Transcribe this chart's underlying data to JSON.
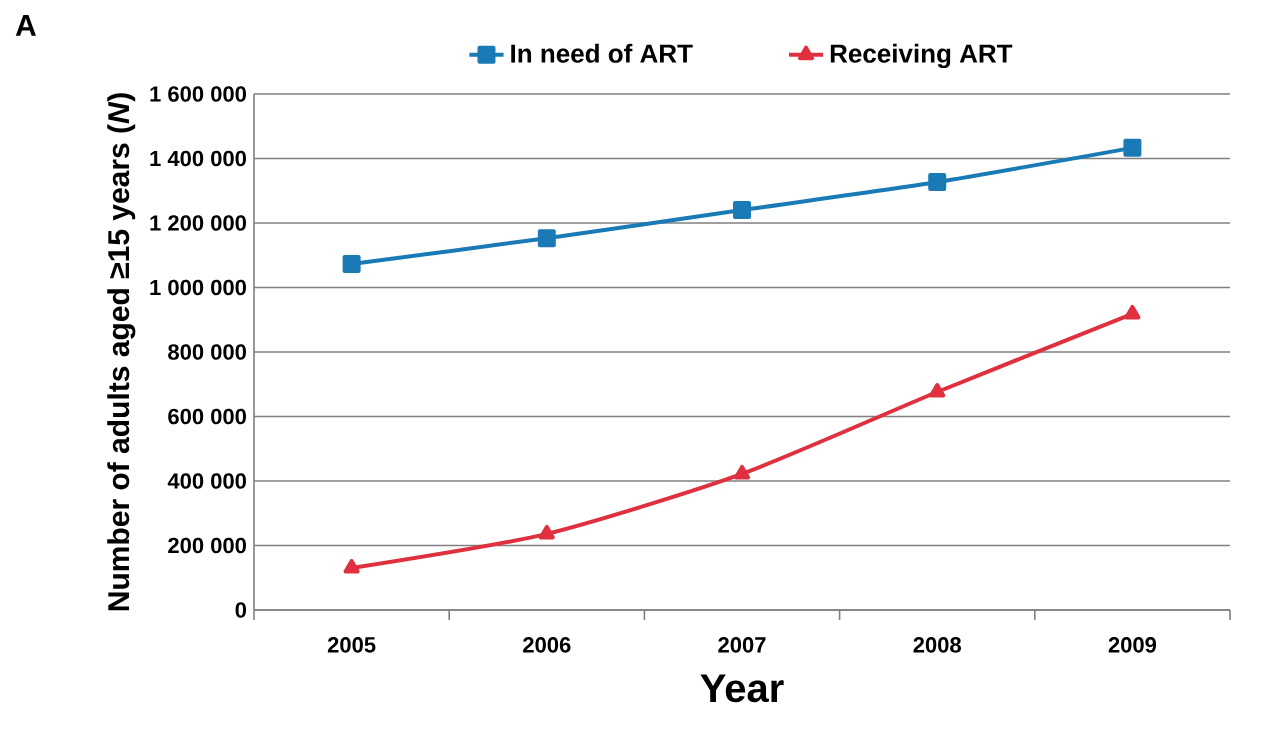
{
  "chart_data": {
    "type": "line",
    "xlabel": "Year",
    "ylabel": "Number of adults aged ≥15 years (*N*)",
    "annotations": [
      "A"
    ],
    "categories": [
      "2005",
      "2006",
      "2007",
      "2008",
      "2009"
    ],
    "series": [
      {
        "name": "In need of ART",
        "color": "#1a7ab5",
        "marker": "square",
        "values": [
          1073000,
          1153000,
          1240000,
          1327000,
          1433000
        ]
      },
      {
        "name": "Receiving ART",
        "color": "#e03040",
        "marker": "triangle",
        "values": [
          130000,
          236000,
          422000,
          676000,
          918000
        ]
      }
    ],
    "ylim": [
      0,
      1600000
    ],
    "yticks": [
      0,
      {
        "value": 200000,
        "label": "200 000"
      },
      {
        "value": 400000,
        "label": "400 000"
      },
      {
        "value": 600000,
        "label": "600 000"
      },
      {
        "value": 800000,
        "label": "800 000"
      },
      {
        "value": 1000000,
        "label": "1 000 000"
      },
      {
        "value": 1200000,
        "label": "1 200 000"
      },
      {
        "value": 1400000,
        "label": "1 400 000"
      },
      {
        "value": 1600000,
        "label": "1 600 000"
      }
    ],
    "grid": "y",
    "legend": "top",
    "line_style": "solid"
  }
}
